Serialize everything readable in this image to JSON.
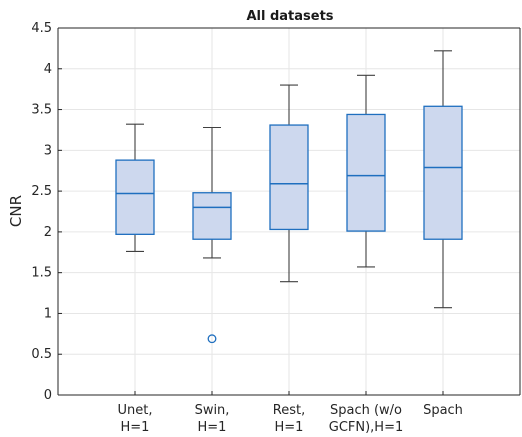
{
  "chart_data": {
    "type": "box",
    "title": "All datasets",
    "xlabel": "",
    "ylabel": "CNR",
    "ylim": [
      0,
      4.5
    ],
    "yticks": [
      "0",
      "0.5",
      "1",
      "1.5",
      "2",
      "2.5",
      "3",
      "3.5",
      "4",
      "4.5"
    ],
    "grid": true,
    "colors": {
      "box_fill": "#cdd8ee",
      "box_edge": "#1f6fbf",
      "whisker": "#404040"
    },
    "categories": [
      {
        "lines": [
          "Unet,",
          "H=1"
        ],
        "min": 1.76,
        "q1": 1.97,
        "median": 2.47,
        "q3": 2.88,
        "max": 3.32,
        "outliers": []
      },
      {
        "lines": [
          "Swin,",
          "H=1"
        ],
        "min": 1.68,
        "q1": 1.91,
        "median": 2.3,
        "q3": 2.48,
        "max": 3.28,
        "outliers": [
          0.69
        ]
      },
      {
        "lines": [
          "Rest,",
          "H=1"
        ],
        "min": 1.39,
        "q1": 2.03,
        "median": 2.59,
        "q3": 3.31,
        "max": 3.8,
        "outliers": []
      },
      {
        "lines": [
          "Spach  (w/o",
          "GCFN),H=1"
        ],
        "min": 1.57,
        "q1": 2.01,
        "median": 2.69,
        "q3": 3.44,
        "max": 3.92,
        "outliers": []
      },
      {
        "lines": [
          "Spach",
          ""
        ],
        "min": 1.07,
        "q1": 1.91,
        "median": 2.79,
        "q3": 3.54,
        "max": 4.22,
        "outliers": []
      }
    ]
  }
}
